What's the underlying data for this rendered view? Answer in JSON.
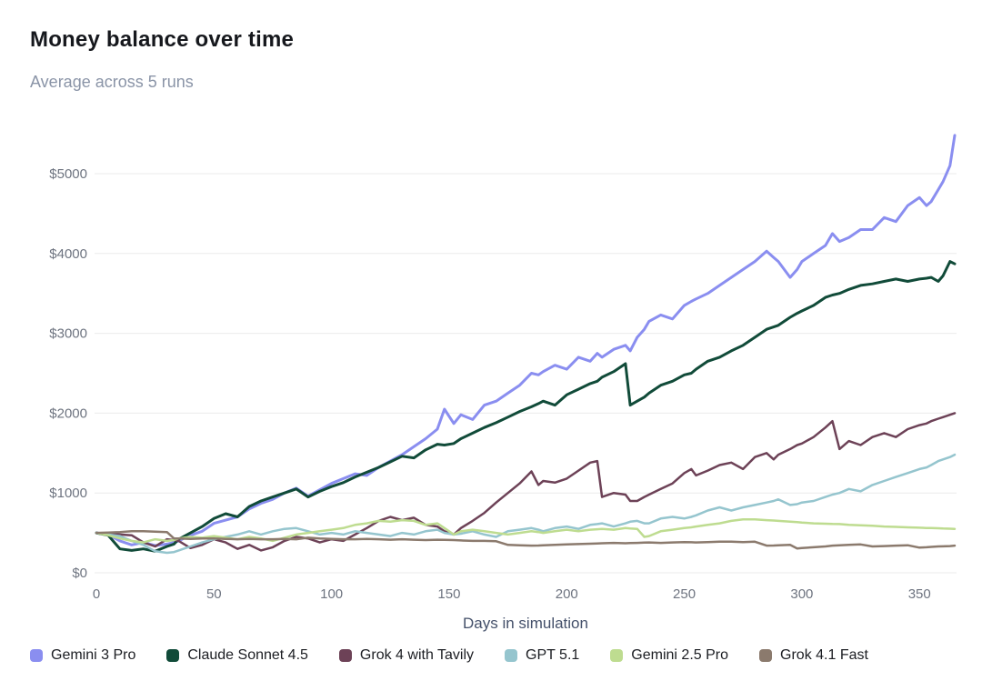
{
  "header": {
    "title": "Money balance over time",
    "subtitle": "Average across 5 runs"
  },
  "chart_data": {
    "type": "line",
    "title": "Money balance over time",
    "subtitle": "Average across 5 runs",
    "xlabel": "Days in simulation",
    "ylabel": "",
    "xlim": [
      0,
      365
    ],
    "ylim": [
      0,
      5500
    ],
    "grid": "horizontal-only",
    "legend_position": "bottom",
    "x_ticks": [
      {
        "value": 0,
        "label": "0"
      },
      {
        "value": 50,
        "label": "50"
      },
      {
        "value": 100,
        "label": "100"
      },
      {
        "value": 150,
        "label": "150"
      },
      {
        "value": 200,
        "label": "200"
      },
      {
        "value": 250,
        "label": "250"
      },
      {
        "value": 300,
        "label": "300"
      },
      {
        "value": 350,
        "label": "350"
      }
    ],
    "y_ticks": [
      {
        "value": 0,
        "label": "$0"
      },
      {
        "value": 1000,
        "label": "$1000"
      },
      {
        "value": 2000,
        "label": "$2000"
      },
      {
        "value": 3000,
        "label": "$3000"
      },
      {
        "value": 4000,
        "label": "$4000"
      },
      {
        "value": 5000,
        "label": "$5000"
      }
    ],
    "x": [
      0,
      5,
      10,
      15,
      20,
      25,
      30,
      33,
      35,
      40,
      45,
      50,
      55,
      60,
      65,
      70,
      75,
      80,
      85,
      90,
      95,
      100,
      105,
      110,
      115,
      120,
      125,
      130,
      135,
      140,
      145,
      148,
      152,
      155,
      160,
      165,
      170,
      175,
      180,
      185,
      188,
      190,
      195,
      200,
      205,
      210,
      213,
      215,
      220,
      225,
      227,
      230,
      233,
      235,
      240,
      245,
      250,
      253,
      255,
      260,
      265,
      270,
      275,
      280,
      285,
      288,
      290,
      295,
      298,
      300,
      305,
      310,
      313,
      316,
      320,
      325,
      330,
      335,
      340,
      345,
      350,
      353,
      355,
      358,
      360,
      363,
      365
    ],
    "series": [
      {
        "name": "Gemini 3 Pro",
        "color": "#8a8ef0",
        "stroke_width": 3,
        "values": [
          500,
          480,
          400,
          350,
          380,
          340,
          360,
          380,
          400,
          470,
          520,
          620,
          660,
          700,
          800,
          870,
          920,
          1000,
          1060,
          960,
          1040,
          1120,
          1180,
          1240,
          1220,
          1320,
          1400,
          1480,
          1580,
          1680,
          1800,
          2050,
          1870,
          1980,
          1920,
          2100,
          2150,
          2250,
          2350,
          2500,
          2480,
          2520,
          2600,
          2550,
          2700,
          2650,
          2750,
          2700,
          2800,
          2850,
          2780,
          2950,
          3050,
          3150,
          3230,
          3180,
          3350,
          3400,
          3430,
          3500,
          3600,
          3700,
          3800,
          3900,
          4030,
          3950,
          3900,
          3700,
          3800,
          3900,
          4000,
          4100,
          4250,
          4150,
          4200,
          4300,
          4300,
          4450,
          4400,
          4600,
          4700,
          4600,
          4650,
          4800,
          4900,
          5100,
          5480
        ]
      },
      {
        "name": "Claude Sonnet 4.5",
        "color": "#114b39",
        "stroke_width": 3,
        "values": [
          500,
          470,
          300,
          280,
          300,
          270,
          330,
          360,
          420,
          500,
          580,
          680,
          740,
          700,
          830,
          900,
          950,
          1000,
          1050,
          950,
          1020,
          1080,
          1130,
          1200,
          1260,
          1320,
          1390,
          1460,
          1440,
          1540,
          1610,
          1600,
          1620,
          1680,
          1750,
          1820,
          1880,
          1950,
          2020,
          2080,
          2120,
          2150,
          2100,
          2230,
          2300,
          2370,
          2400,
          2450,
          2520,
          2620,
          2100,
          2150,
          2200,
          2250,
          2350,
          2400,
          2480,
          2500,
          2550,
          2650,
          2700,
          2780,
          2850,
          2950,
          3050,
          3080,
          3100,
          3200,
          3250,
          3280,
          3350,
          3450,
          3480,
          3500,
          3550,
          3600,
          3620,
          3650,
          3680,
          3650,
          3680,
          3690,
          3700,
          3650,
          3720,
          3900,
          3870
        ]
      },
      {
        "name": "Grok 4 with Tavily",
        "color": "#6d4257",
        "stroke_width": 2.5,
        "values": [
          500,
          490,
          480,
          470,
          380,
          330,
          420,
          410,
          400,
          310,
          350,
          420,
          380,
          300,
          350,
          280,
          320,
          400,
          450,
          430,
          380,
          420,
          400,
          480,
          560,
          650,
          700,
          660,
          690,
          600,
          580,
          520,
          480,
          560,
          650,
          750,
          880,
          1000,
          1120,
          1270,
          1100,
          1150,
          1130,
          1180,
          1280,
          1380,
          1400,
          950,
          1000,
          980,
          900,
          900,
          950,
          980,
          1050,
          1120,
          1250,
          1300,
          1220,
          1280,
          1350,
          1380,
          1300,
          1450,
          1500,
          1420,
          1480,
          1550,
          1600,
          1620,
          1700,
          1820,
          1900,
          1550,
          1650,
          1600,
          1700,
          1750,
          1700,
          1800,
          1850,
          1870,
          1900,
          1930,
          1950,
          1980,
          2000
        ]
      },
      {
        "name": "GPT 5.1",
        "color": "#95c5ce",
        "stroke_width": 2.5,
        "values": [
          500,
          480,
          460,
          400,
          350,
          270,
          250,
          260,
          280,
          330,
          380,
          420,
          450,
          480,
          520,
          480,
          520,
          550,
          560,
          520,
          480,
          500,
          480,
          520,
          500,
          480,
          460,
          500,
          480,
          520,
          540,
          500,
          480,
          490,
          520,
          480,
          450,
          520,
          540,
          560,
          540,
          520,
          560,
          580,
          550,
          600,
          610,
          620,
          580,
          620,
          640,
          650,
          620,
          620,
          680,
          700,
          680,
          700,
          720,
          780,
          820,
          780,
          820,
          850,
          880,
          900,
          920,
          850,
          860,
          880,
          900,
          950,
          980,
          1000,
          1050,
          1020,
          1100,
          1150,
          1200,
          1250,
          1300,
          1320,
          1350,
          1400,
          1420,
          1450,
          1480
        ]
      },
      {
        "name": "Gemini 2.5 Pro",
        "color": "#bedc90",
        "stroke_width": 2.5,
        "values": [
          500,
          470,
          430,
          400,
          380,
          420,
          400,
          410,
          430,
          450,
          440,
          460,
          440,
          420,
          450,
          430,
          400,
          440,
          480,
          500,
          520,
          540,
          560,
          600,
          620,
          650,
          640,
          660,
          650,
          600,
          620,
          560,
          480,
          520,
          540,
          520,
          500,
          480,
          500,
          520,
          510,
          500,
          520,
          540,
          520,
          540,
          545,
          550,
          540,
          560,
          555,
          550,
          450,
          460,
          520,
          540,
          560,
          570,
          580,
          600,
          620,
          650,
          670,
          670,
          660,
          655,
          650,
          640,
          635,
          630,
          620,
          615,
          612,
          610,
          600,
          595,
          590,
          580,
          575,
          570,
          565,
          562,
          560,
          558,
          555,
          552,
          550
        ]
      },
      {
        "name": "Grok 4.1 Fast",
        "color": "#8b7a6d",
        "stroke_width": 2.5,
        "values": [
          500,
          505,
          510,
          520,
          520,
          515,
          510,
          430,
          430,
          425,
          430,
          430,
          425,
          420,
          425,
          420,
          420,
          425,
          420,
          440,
          430,
          425,
          420,
          420,
          425,
          420,
          415,
          420,
          415,
          410,
          415,
          412,
          410,
          405,
          400,
          400,
          395,
          350,
          345,
          340,
          342,
          345,
          350,
          355,
          360,
          365,
          368,
          370,
          375,
          370,
          372,
          375,
          378,
          380,
          375,
          380,
          385,
          383,
          380,
          385,
          390,
          390,
          385,
          390,
          340,
          342,
          345,
          350,
          305,
          310,
          320,
          330,
          340,
          345,
          350,
          355,
          330,
          335,
          340,
          345,
          315,
          320,
          325,
          330,
          332,
          335,
          340
        ]
      }
    ],
    "style": {
      "grid_color": "#ebebeb",
      "tick_label_color": "#6e7480",
      "axis_title_color": "#44506a",
      "title_color": "#16181d",
      "subtitle_color": "#8a94a7"
    }
  }
}
